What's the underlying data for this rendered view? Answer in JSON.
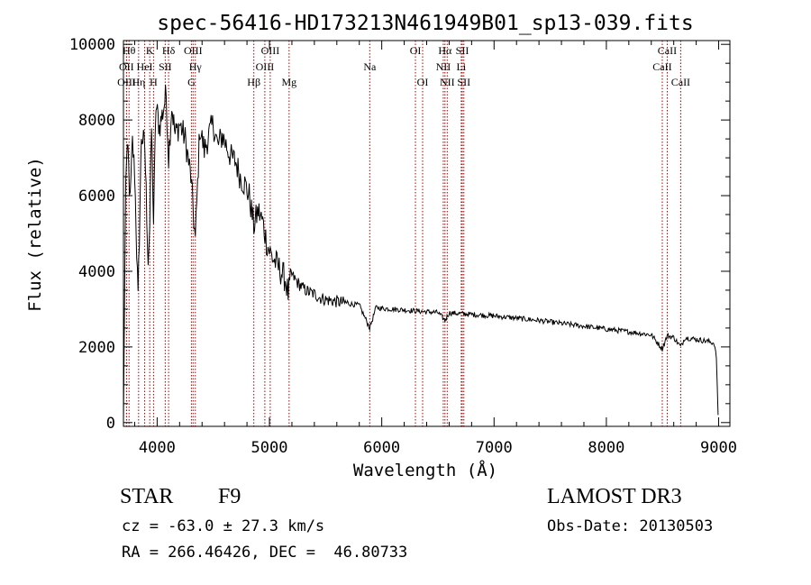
{
  "chart_data": {
    "type": "line",
    "title": "spec-56416-HD173213N461949B01_sp13-039.fits",
    "xlabel": "Wavelength (Å)",
    "ylabel": "Flux (relative)",
    "xlim": [
      3700,
      9100
    ],
    "ylim": [
      -100,
      10100
    ],
    "xticks": [
      4000,
      5000,
      6000,
      7000,
      8000,
      9000
    ],
    "xtick_labels": [
      "4000",
      "5000",
      "6000",
      "7000",
      "8000",
      "9000"
    ],
    "yticks": [
      0,
      2000,
      4000,
      6000,
      8000,
      10000
    ],
    "ytick_labels": [
      "0",
      "2000",
      "4000",
      "6000",
      "8000",
      "10000"
    ],
    "line_color": "#000000",
    "marker_color": "#aa0000",
    "series": [
      {
        "name": "spectrum",
        "x": [
          3700,
          3720,
          3740,
          3760,
          3780,
          3800,
          3830,
          3860,
          3890,
          3920,
          3934,
          3950,
          3968,
          3990,
          4020,
          4050,
          4080,
          4102,
          4130,
          4160,
          4200,
          4250,
          4300,
          4340,
          4380,
          4420,
          4460,
          4500,
          4540,
          4580,
          4620,
          4660,
          4700,
          4740,
          4780,
          4820,
          4861,
          4900,
          4940,
          4980,
          5020,
          5060,
          5100,
          5140,
          5167,
          5200,
          5250,
          5300,
          5350,
          5400,
          5450,
          5500,
          5600,
          5700,
          5800,
          5893,
          5950,
          6000,
          6100,
          6200,
          6300,
          6400,
          6500,
          6563,
          6600,
          6700,
          6800,
          6900,
          7000,
          7200,
          7400,
          7600,
          7800,
          8000,
          8200,
          8400,
          8498,
          8542,
          8600,
          8662,
          8700,
          8800,
          8900,
          8960,
          8980,
          8995
        ],
        "y": [
          0,
          6500,
          7200,
          5800,
          7400,
          6600,
          3200,
          7600,
          7300,
          4300,
          5200,
          7800,
          5300,
          8400,
          7800,
          8200,
          8700,
          7000,
          8400,
          7600,
          7900,
          7500,
          6500,
          4800,
          7800,
          7200,
          7600,
          7900,
          7300,
          7600,
          7300,
          7000,
          6900,
          6500,
          6300,
          6000,
          5200,
          5600,
          5300,
          4700,
          4400,
          4200,
          4000,
          3800,
          3400,
          3900,
          3700,
          3550,
          3450,
          3400,
          3300,
          3250,
          3200,
          3150,
          3100,
          2500,
          3050,
          3020,
          3000,
          2980,
          2950,
          2930,
          2910,
          2700,
          2900,
          2880,
          2860,
          2840,
          2820,
          2760,
          2700,
          2620,
          2550,
          2470,
          2400,
          2320,
          1950,
          2300,
          2250,
          2000,
          2250,
          2200,
          2150,
          2100,
          1700,
          200
        ]
      }
    ],
    "lines": [
      {
        "label": "Hθ",
        "x": 3750,
        "row": 0
      },
      {
        "label": "OII",
        "x": 3727,
        "row": 1
      },
      {
        "label": "OIII",
        "x": 3728,
        "row": 2
      },
      {
        "label": "Hη",
        "x": 3835,
        "row": 2
      },
      {
        "label": "HeI",
        "x": 3889,
        "row": 1
      },
      {
        "label": "K",
        "x": 3934,
        "row": 0
      },
      {
        "label": "H",
        "x": 3968,
        "row": 2
      },
      {
        "label": "SII",
        "x": 4072,
        "row": 1
      },
      {
        "label": "Hδ",
        "x": 4102,
        "row": 0
      },
      {
        "label": "OIII",
        "x": 4320,
        "row": 0
      },
      {
        "label": "Hγ",
        "x": 4340,
        "row": 1
      },
      {
        "label": "G",
        "x": 4305,
        "row": 2
      },
      {
        "label": "Hβ",
        "x": 4861,
        "row": 2
      },
      {
        "label": "OIII",
        "x": 4959,
        "row": 1
      },
      {
        "label": "OIII",
        "x": 5007,
        "row": 0
      },
      {
        "label": "Mg",
        "x": 5175,
        "row": 2
      },
      {
        "label": "Na",
        "x": 5893,
        "row": 1
      },
      {
        "label": "OI",
        "x": 6300,
        "row": 0
      },
      {
        "label": "OI",
        "x": 6364,
        "row": 2
      },
      {
        "label": "Hα",
        "x": 6563,
        "row": 0
      },
      {
        "label": "NII",
        "x": 6548,
        "row": 1
      },
      {
        "label": "NII",
        "x": 6583,
        "row": 2
      },
      {
        "label": "SII",
        "x": 6717,
        "row": 0
      },
      {
        "label": "Li",
        "x": 6708,
        "row": 1
      },
      {
        "label": "SII",
        "x": 6731,
        "row": 2
      },
      {
        "label": "CaII",
        "x": 8498,
        "row": 1
      },
      {
        "label": "CaII",
        "x": 8542,
        "row": 0
      },
      {
        "label": "CaII",
        "x": 8662,
        "row": 2
      }
    ]
  },
  "info": {
    "object_class": "STAR",
    "subclass": "F9",
    "survey": "LAMOST DR3",
    "cz": "cz = -63.0 ± 27.3 km/s",
    "obs_date": "Obs-Date: 20130503",
    "coords": "RA = 266.46426, DEC =  46.80733"
  }
}
